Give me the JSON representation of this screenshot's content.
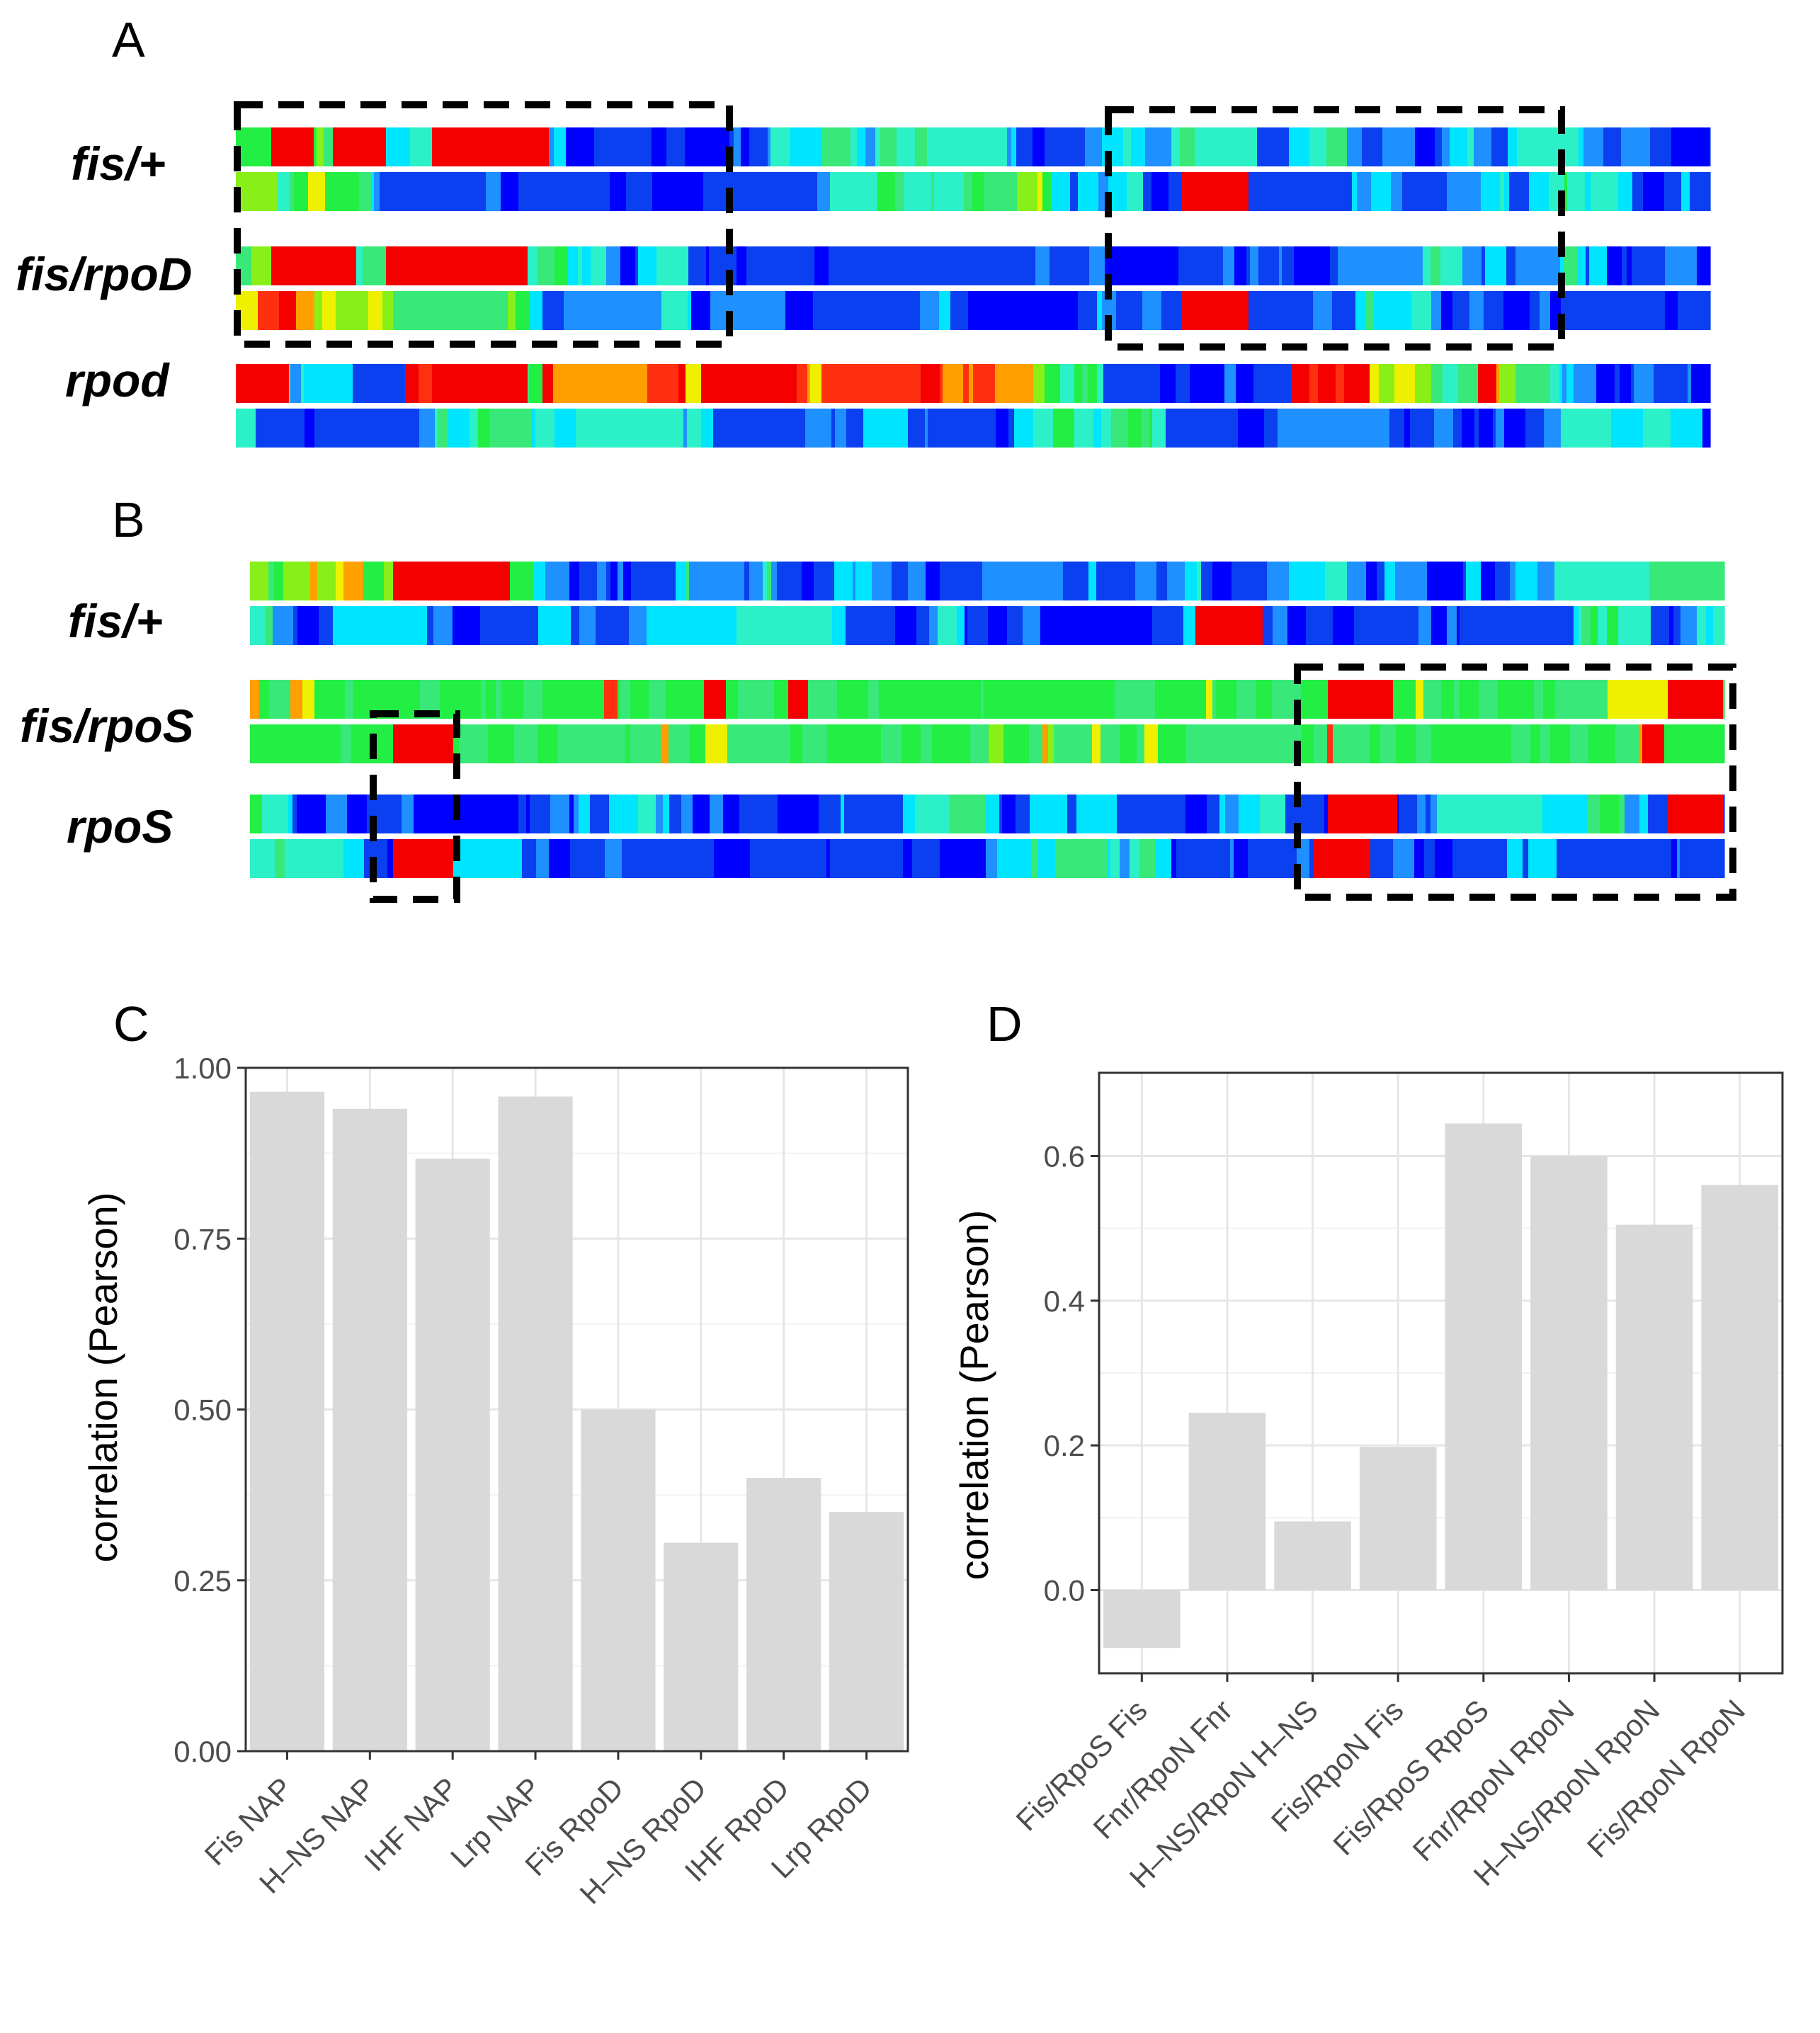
{
  "panels": {
    "a": {
      "letter": "A",
      "rows": [
        "fis/+",
        "fis/rpoD",
        "rpod"
      ]
    },
    "b": {
      "letter": "B",
      "rows": [
        "fis/+",
        "fis/rpoS",
        "rpoS"
      ]
    },
    "c": {
      "letter": "C"
    },
    "d": {
      "letter": "D"
    }
  },
  "heatmap_palette": [
    "#0000ff",
    "#0b40f0",
    "#1e90ff",
    "#00e5ff",
    "#2cf0c8",
    "#38e878",
    "#22ee44",
    "#88f018",
    "#eef000",
    "#ffa000",
    "#ff3010",
    "#f50000"
  ],
  "chart_data": [
    {
      "type": "bar",
      "panel": "C",
      "categories": [
        "Fis NAP",
        "H–NS NAP",
        "IHF NAP",
        "Lrp NAP",
        "Fis RpoD",
        "H–NS RpoD",
        "IHF RpoD",
        "Lrp RpoD"
      ],
      "values": [
        0.965,
        0.94,
        0.867,
        0.958,
        0.5,
        0.305,
        0.4,
        0.35
      ],
      "ylim": [
        0,
        1.0
      ],
      "yticks": [
        "0.00",
        "0.25",
        "0.50",
        "0.75",
        "1.00"
      ],
      "ytick_values": [
        0,
        0.25,
        0.5,
        0.75,
        1.0
      ],
      "ylabel": "correlation (Pearson)",
      "xlabel": "",
      "bar_color": "#d9d9d9",
      "grid": true
    },
    {
      "type": "bar",
      "panel": "D",
      "categories": [
        "Fis/RpoS Fis",
        "Fnr/RpoN Fnr",
        "H–NS/RpoN H–NS",
        "Fis/RpoN Fis",
        "Fis/RpoS RpoS",
        "Fnr/RpoN RpoN",
        "H–NS/RpoN RpoN",
        "Fis/RpoN RpoN"
      ],
      "values": [
        -0.08,
        0.245,
        0.095,
        0.198,
        0.645,
        0.6,
        0.505,
        0.56
      ],
      "ylim": [
        -0.115,
        0.715
      ],
      "yticks": [
        "0.0",
        "0.2",
        "0.4",
        "0.6"
      ],
      "ytick_values": [
        0,
        0.2,
        0.4,
        0.6
      ],
      "ylabel": "correlation (Pearson)",
      "xlabel": "",
      "bar_color": "#d9d9d9",
      "grid": true
    }
  ]
}
